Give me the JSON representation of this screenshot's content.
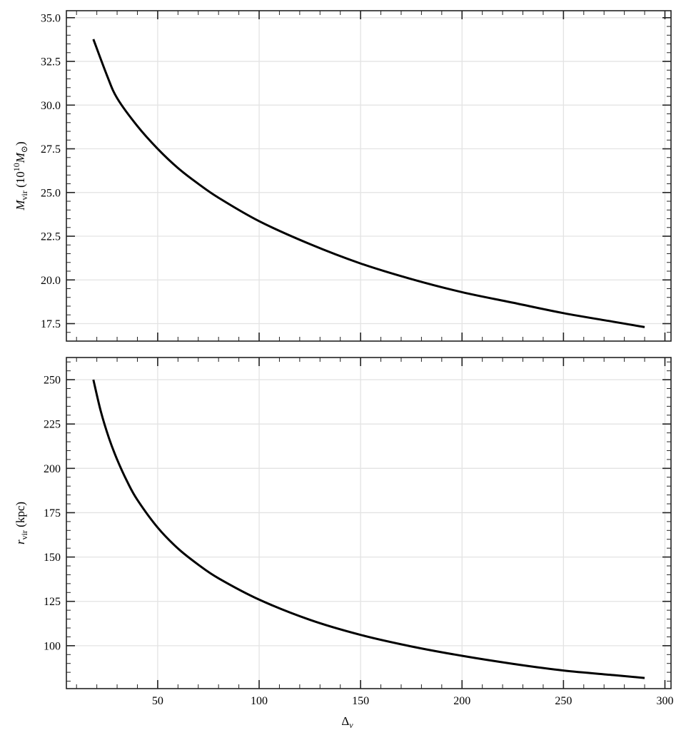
{
  "chart_data": [
    {
      "type": "line",
      "panel": "top",
      "title": "",
      "xlabel": "",
      "ylabel": "M_vir (10^10 M_sun)",
      "ylabel_parts": {
        "main": "M",
        "sub": "vir",
        "rest_open": " (10",
        "sup": "10",
        "rest_mid": "M",
        "sun": "⊙",
        "rest_close": ")"
      },
      "xlim": [
        5,
        303
      ],
      "ylim": [
        16.5,
        35.4
      ],
      "yticks": [
        17.5,
        20.0,
        22.5,
        25.0,
        27.5,
        30.0,
        32.5,
        35.0
      ],
      "ytick_labels": [
        "17.5",
        "20.0",
        "22.5",
        "25.0",
        "27.5",
        "30.0",
        "32.5",
        "35.0"
      ],
      "y_minor_step": 0.5,
      "xticks": [
        50,
        100,
        150,
        200,
        250,
        300
      ],
      "x_minor_step": 10,
      "grid": true,
      "series": [
        {
          "name": "M_vir",
          "color": "#000000",
          "x": [
            18.3,
            25,
            30,
            40,
            50,
            60,
            70,
            80,
            100,
            125,
            150,
            175,
            200,
            225,
            250,
            275,
            290
          ],
          "values": [
            33.77,
            31.7,
            30.4,
            28.8,
            27.5,
            26.4,
            25.5,
            24.7,
            23.36,
            22.05,
            20.94,
            20.05,
            19.3,
            18.7,
            18.1,
            17.6,
            17.3
          ]
        }
      ]
    },
    {
      "type": "line",
      "panel": "bottom",
      "title": "",
      "xlabel": "Δ_v",
      "xlabel_parts": {
        "main": "Δ",
        "sub": "v"
      },
      "ylabel": "r_vir (kpc)",
      "ylabel_parts": {
        "main": "r",
        "sub": "vir",
        "rest": " (kpc)"
      },
      "xlim": [
        5,
        303
      ],
      "ylim": [
        75.8,
        262.5
      ],
      "yticks": [
        100,
        125,
        150,
        175,
        200,
        225,
        250
      ],
      "ytick_labels": [
        "100",
        "125",
        "150",
        "175",
        "200",
        "225",
        "250"
      ],
      "y_minor_step": 5,
      "xticks": [
        50,
        100,
        150,
        200,
        250,
        300
      ],
      "xtick_labels": [
        "50",
        "100",
        "150",
        "200",
        "250",
        "300"
      ],
      "x_minor_step": 10,
      "grid": true,
      "series": [
        {
          "name": "r_vir",
          "color": "#000000",
          "x": [
            18.3,
            22,
            26,
            30,
            35,
            40,
            50,
            60,
            70,
            80,
            100,
            125,
            150,
            175,
            200,
            225,
            250,
            275,
            290
          ],
          "values": [
            250,
            232.0,
            217.0,
            205.0,
            192.5,
            182.2,
            166.6,
            154.8,
            145.7,
            138.0,
            126.0,
            114.6,
            106.1,
            99.6,
            94.3,
            89.8,
            86.0,
            83.4,
            81.8
          ]
        }
      ]
    }
  ]
}
